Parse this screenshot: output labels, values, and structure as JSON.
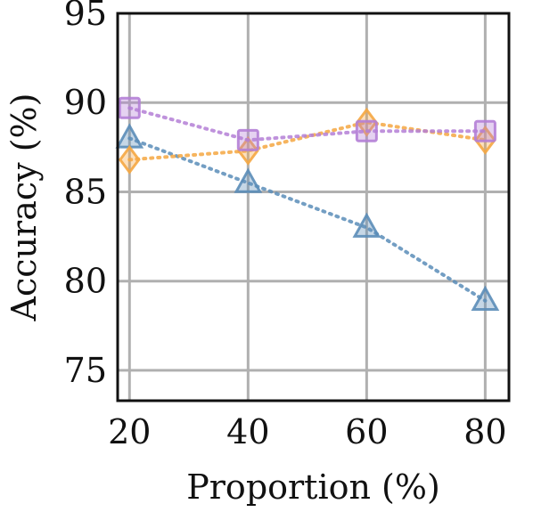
{
  "chart_data": {
    "type": "line",
    "title": "",
    "xlabel": "Proportion (%)",
    "ylabel": "Accuracy (%)",
    "x": [
      20,
      40,
      60,
      80
    ],
    "xticks": [
      "20",
      "40",
      "60",
      "80"
    ],
    "yticks": [
      "75",
      "80",
      "85",
      "90",
      "95"
    ],
    "xlim": [
      18,
      84
    ],
    "ylim": [
      73.3,
      95
    ],
    "grid": true,
    "legend": "none",
    "series": [
      {
        "values": [
          88.0,
          85.5,
          83.0,
          78.9
        ],
        "color": "#5b8db8",
        "marker": "triangle"
      },
      {
        "values": [
          86.8,
          87.3,
          88.9,
          87.9
        ],
        "color": "#f5a742",
        "marker": "diamond"
      },
      {
        "values": [
          89.7,
          87.9,
          88.4,
          88.4
        ],
        "color": "#b47fd6",
        "marker": "square"
      }
    ]
  }
}
